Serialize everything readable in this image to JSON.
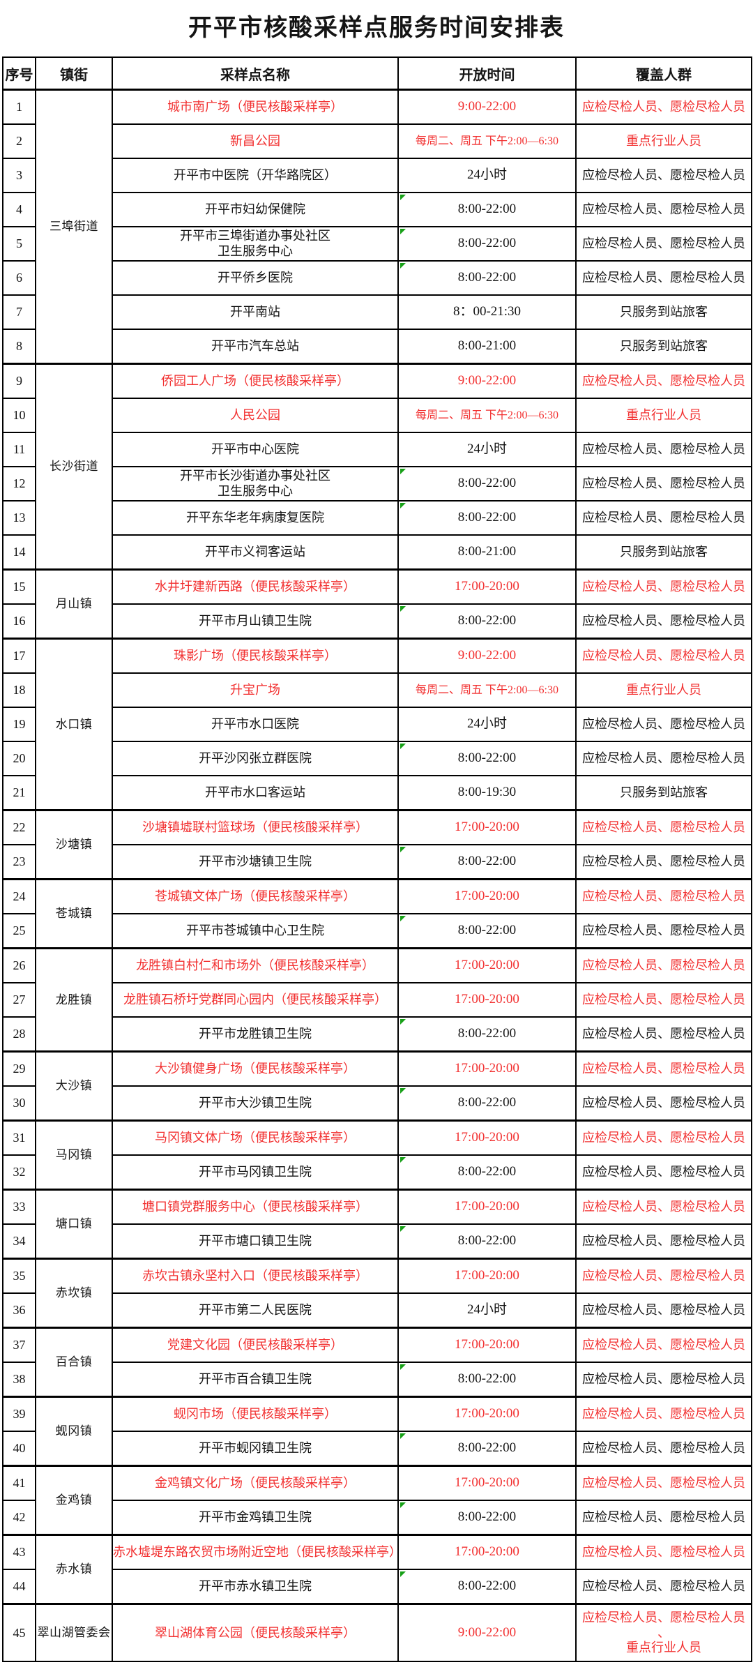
{
  "title": "开平市核酸采样点服务时间安排表",
  "columns": [
    "序号",
    "镇街",
    "采样点名称",
    "开放时间",
    "覆盖人群"
  ],
  "colors": {
    "red_text": "#f23030",
    "black_text": "#141414",
    "border": "#000000",
    "green_comment_marker": "#18a018",
    "background": "#ffffff"
  },
  "rows": [
    {
      "no": "1",
      "town": "三埠街道",
      "town_span": 8,
      "name": "城市南广场（便民核酸采样亭）",
      "time": "9:00-22:00",
      "coverage": "应检尽检人员、愿检尽检人员",
      "red": true,
      "mark": false
    },
    {
      "no": "2",
      "name": "新昌公园",
      "time": "每周二、周五 下午2:00—6:30",
      "coverage": "重点行业人员",
      "red": true,
      "mark": false
    },
    {
      "no": "3",
      "name": "开平市中医院（开华路院区）",
      "time": "24小时",
      "coverage": "应检尽检人员、愿检尽检人员",
      "red": false,
      "mark": false
    },
    {
      "no": "4",
      "name": "开平市妇幼保健院",
      "time": "8:00-22:00",
      "coverage": "应检尽检人员、愿检尽检人员",
      "red": false,
      "mark": true
    },
    {
      "no": "5",
      "name": "开平市三埠街道办事处社区\n卫生服务中心",
      "time": "8:00-22:00",
      "coverage": "应检尽检人员、愿检尽检人员",
      "red": false,
      "mark": true
    },
    {
      "no": "6",
      "name": "开平侨乡医院",
      "time": "8:00-22:00",
      "coverage": "应检尽检人员、愿检尽检人员",
      "red": false,
      "mark": true
    },
    {
      "no": "7",
      "name": "开平南站",
      "time": "8：00-21:30",
      "coverage": "只服务到站旅客",
      "red": false,
      "mark": false
    },
    {
      "no": "8",
      "name": "开平市汽车总站",
      "time": "8:00-21:00",
      "coverage": "只服务到站旅客",
      "red": false,
      "mark": false
    },
    {
      "no": "9",
      "town": "长沙街道",
      "town_span": 6,
      "name": "侨园工人广场（便民核酸采样亭）",
      "time": "9:00-22:00",
      "coverage": "应检尽检人员、愿检尽检人员",
      "red": true,
      "mark": false
    },
    {
      "no": "10",
      "name": "人民公园",
      "time": "每周二、周五 下午2:00—6:30",
      "coverage": "重点行业人员",
      "red": true,
      "mark": false
    },
    {
      "no": "11",
      "name": "开平市中心医院",
      "time": "24小时",
      "coverage": "应检尽检人员、愿检尽检人员",
      "red": false,
      "mark": false
    },
    {
      "no": "12",
      "name": "开平市长沙街道办事处社区\n卫生服务中心",
      "time": "8:00-22:00",
      "coverage": "应检尽检人员、愿检尽检人员",
      "red": false,
      "mark": true
    },
    {
      "no": "13",
      "name": "开平东华老年病康复医院",
      "time": "8:00-22:00",
      "coverage": "应检尽检人员、愿检尽检人员",
      "red": false,
      "mark": true
    },
    {
      "no": "14",
      "name": "开平市义祠客运站",
      "time": "8:00-21:00",
      "coverage": "只服务到站旅客",
      "red": false,
      "mark": false
    },
    {
      "no": "15",
      "town": "月山镇",
      "town_span": 2,
      "name": "水井圩建新西路（便民核酸采样亭）",
      "time": "17:00-20:00",
      "coverage": "应检尽检人员、愿检尽检人员",
      "red": true,
      "mark": false
    },
    {
      "no": "16",
      "name": "开平市月山镇卫生院",
      "time": "8:00-22:00",
      "coverage": "应检尽检人员、愿检尽检人员",
      "red": false,
      "mark": true
    },
    {
      "no": "17",
      "town": "水口镇",
      "town_span": 5,
      "name": "珠影广场（便民核酸采样亭）",
      "time": "9:00-22:00",
      "coverage": "应检尽检人员、愿检尽检人员",
      "red": true,
      "mark": false
    },
    {
      "no": "18",
      "name": "升宝广场",
      "time": "每周二、周五 下午2:00—6:30",
      "coverage": "重点行业人员",
      "red": true,
      "mark": false
    },
    {
      "no": "19",
      "name": "开平市水口医院",
      "time": "24小时",
      "coverage": "应检尽检人员、愿检尽检人员",
      "red": false,
      "mark": false
    },
    {
      "no": "20",
      "name": "开平沙冈张立群医院",
      "time": "8:00-22:00",
      "coverage": "应检尽检人员、愿检尽检人员",
      "red": false,
      "mark": true
    },
    {
      "no": "21",
      "name": "开平市水口客运站",
      "time": "8:00-19:30",
      "coverage": "只服务到站旅客",
      "red": false,
      "mark": false
    },
    {
      "no": "22",
      "town": "沙塘镇",
      "town_span": 2,
      "name": "沙塘镇墟联村篮球场（便民核酸采样亭）",
      "time": "17:00-20:00",
      "coverage": "应检尽检人员、愿检尽检人员",
      "red": true,
      "mark": false
    },
    {
      "no": "23",
      "name": "开平市沙塘镇卫生院",
      "time": "8:00-22:00",
      "coverage": "应检尽检人员、愿检尽检人员",
      "red": false,
      "mark": true
    },
    {
      "no": "24",
      "town": "苍城镇",
      "town_span": 2,
      "name": "苍城镇文体广场（便民核酸采样亭）",
      "time": "17:00-20:00",
      "coverage": "应检尽检人员、愿检尽检人员",
      "red": true,
      "mark": false
    },
    {
      "no": "25",
      "name": "开平市苍城镇中心卫生院",
      "time": "8:00-22:00",
      "coverage": "应检尽检人员、愿检尽检人员",
      "red": false,
      "mark": true
    },
    {
      "no": "26",
      "town": "龙胜镇",
      "town_span": 3,
      "name": "龙胜镇白村仁和市场外（便民核酸采样亭）",
      "time": "17:00-20:00",
      "coverage": "应检尽检人员、愿检尽检人员",
      "red": true,
      "mark": false
    },
    {
      "no": "27",
      "name": "龙胜镇石桥圩党群同心园内（便民核酸采样亭）",
      "time": "17:00-20:00",
      "coverage": "应检尽检人员、愿检尽检人员",
      "red": true,
      "mark": false
    },
    {
      "no": "28",
      "name": "开平市龙胜镇卫生院",
      "time": "8:00-22:00",
      "coverage": "应检尽检人员、愿检尽检人员",
      "red": false,
      "mark": true
    },
    {
      "no": "29",
      "town": "大沙镇",
      "town_span": 2,
      "name": "大沙镇健身广场（便民核酸采样亭）",
      "time": "17:00-20:00",
      "coverage": "应检尽检人员、愿检尽检人员",
      "red": true,
      "mark": false
    },
    {
      "no": "30",
      "name": "开平市大沙镇卫生院",
      "time": "8:00-22:00",
      "coverage": "应检尽检人员、愿检尽检人员",
      "red": false,
      "mark": true
    },
    {
      "no": "31",
      "town": "马冈镇",
      "town_span": 2,
      "name": "马冈镇文体广场（便民核酸采样亭）",
      "time": "17:00-20:00",
      "coverage": "应检尽检人员、愿检尽检人员",
      "red": true,
      "mark": false
    },
    {
      "no": "32",
      "name": "开平市马冈镇卫生院",
      "time": "8:00-22:00",
      "coverage": "应检尽检人员、愿检尽检人员",
      "red": false,
      "mark": true
    },
    {
      "no": "33",
      "town": "塘口镇",
      "town_span": 2,
      "name": "塘口镇党群服务中心（便民核酸采样亭）",
      "time": "17:00-20:00",
      "coverage": "应检尽检人员、愿检尽检人员",
      "red": true,
      "mark": false
    },
    {
      "no": "34",
      "name": "开平市塘口镇卫生院",
      "time": "8:00-22:00",
      "coverage": "应检尽检人员、愿检尽检人员",
      "red": false,
      "mark": true
    },
    {
      "no": "35",
      "town": "赤坎镇",
      "town_span": 2,
      "name": "赤坎古镇永坚村入口（便民核酸采样亭）",
      "time": "17:00-20:00",
      "coverage": "应检尽检人员、愿检尽检人员",
      "red": true,
      "mark": false
    },
    {
      "no": "36",
      "name": "开平市第二人民医院",
      "time": "24小时",
      "coverage": "应检尽检人员、愿检尽检人员",
      "red": false,
      "mark": false
    },
    {
      "no": "37",
      "town": "百合镇",
      "town_span": 2,
      "name": "党建文化园（便民核酸采样亭）",
      "time": "17:00-20:00",
      "coverage": "应检尽检人员、愿检尽检人员",
      "red": true,
      "mark": false
    },
    {
      "no": "38",
      "name": "开平市百合镇卫生院",
      "time": "8:00-22:00",
      "coverage": "应检尽检人员、愿检尽检人员",
      "red": false,
      "mark": true
    },
    {
      "no": "39",
      "town": "蚬冈镇",
      "town_span": 2,
      "name": "蚬冈市场（便民核酸采样亭）",
      "time": "17:00-20:00",
      "coverage": "应检尽检人员、愿检尽检人员",
      "red": true,
      "mark": false
    },
    {
      "no": "40",
      "name": "开平市蚬冈镇卫生院",
      "time": "8:00-22:00",
      "coverage": "应检尽检人员、愿检尽检人员",
      "red": false,
      "mark": true
    },
    {
      "no": "41",
      "town": "金鸡镇",
      "town_span": 2,
      "name": "金鸡镇文化广场（便民核酸采样亭）",
      "time": "17:00-20:00",
      "coverage": "应检尽检人员、愿检尽检人员",
      "red": true,
      "mark": false
    },
    {
      "no": "42",
      "name": "开平市金鸡镇卫生院",
      "time": "8:00-22:00",
      "coverage": "应检尽检人员、愿检尽检人员",
      "red": false,
      "mark": true
    },
    {
      "no": "43",
      "town": "赤水镇",
      "town_span": 2,
      "name": "赤水墟堤东路农贸市场附近空地（便民核酸采样亭）",
      "time": "17:00-20:00",
      "coverage": "应检尽检人员、愿检尽检人员",
      "red": true,
      "mark": false
    },
    {
      "no": "44",
      "name": "开平市赤水镇卫生院",
      "time": "8:00-22:00",
      "coverage": "应检尽检人员、愿检尽检人员",
      "red": false,
      "mark": true
    },
    {
      "no": "45",
      "town": "翠山湖管委会",
      "town_span": 1,
      "name": "翠山湖体育公园（便民核酸采样亭）",
      "time": "9:00-22:00",
      "coverage": "应检尽检人员、愿检尽检人员\n、\n重点行业人员",
      "red": true,
      "mark": false,
      "tall": true
    }
  ]
}
